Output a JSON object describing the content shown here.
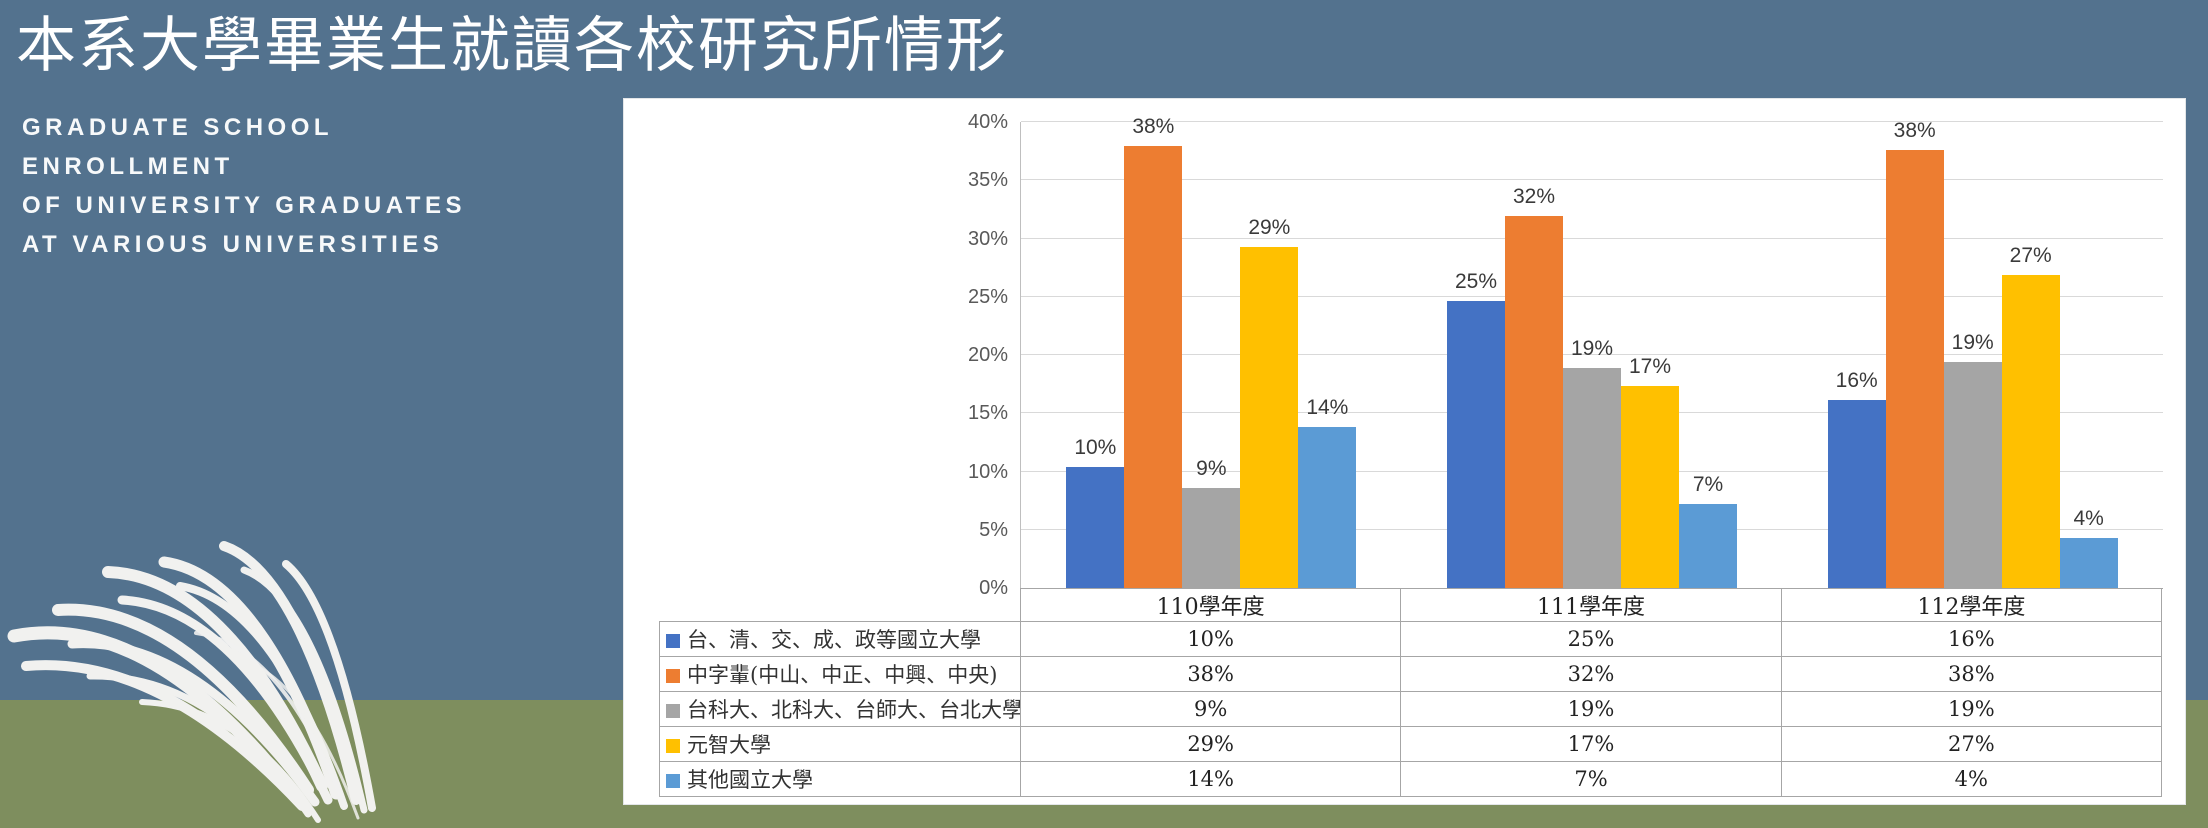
{
  "header": {
    "title": "本系大學畢業生就讀各校研究所情形",
    "subtitle_lines": [
      "GRADUATE SCHOOL",
      "ENROLLMENT",
      "OF UNIVERSITY GRADUATES",
      "AT VARIOUS UNIVERSITIES"
    ]
  },
  "colors": {
    "background_sky": "#53728E",
    "background_ground": "#7E8E5E",
    "panel": "#FFFFFF",
    "grass_decoration": "#F1F1EF",
    "gridline": "#D9D9D9",
    "axis_line": "#BFBFBF",
    "table_border": "#A6A6A6",
    "title_text": "#FFFFFF",
    "axis_text": "#595959",
    "bar_label_text": "#3A3A3A",
    "series": [
      "#4472C4",
      "#ED7D31",
      "#A5A5A5",
      "#FFC000",
      "#5B9BD5"
    ]
  },
  "chart_data": {
    "type": "bar",
    "title": "",
    "categories": [
      "110學年度",
      "111學年度",
      "112學年度"
    ],
    "series": [
      {
        "name": "台、清、交、成、政等國立大學",
        "color": "#4472C4",
        "values": [
          10.4,
          24.6,
          16.1
        ],
        "labels": [
          "10%",
          "25%",
          "16%"
        ]
      },
      {
        "name": "中字輩(中山、中正、中興、中央)",
        "color": "#ED7D31",
        "values": [
          37.9,
          31.9,
          37.6
        ],
        "labels": [
          "38%",
          "32%",
          "38%"
        ]
      },
      {
        "name": "台科大、北科大、台師大、台北大學",
        "color": "#A5A5A5",
        "values": [
          8.6,
          18.9,
          19.4
        ],
        "labels": [
          "9%",
          "19%",
          "19%"
        ]
      },
      {
        "name": "元智大學",
        "color": "#FFC000",
        "values": [
          29.3,
          17.3,
          26.9
        ],
        "labels": [
          "29%",
          "17%",
          "27%"
        ]
      },
      {
        "name": "其他國立大學",
        "color": "#5B9BD5",
        "values": [
          13.8,
          7.2,
          4.3
        ],
        "labels": [
          "14%",
          "7%",
          "4%"
        ]
      }
    ],
    "ylim": [
      0,
      40
    ],
    "ytick_step": 5,
    "ytick_labels": [
      "0%",
      "5%",
      "10%",
      "15%",
      "20%",
      "25%",
      "30%",
      "35%",
      "40%"
    ],
    "grid": true,
    "legend_position": "data-table-left-column",
    "data_table_shown": true
  }
}
